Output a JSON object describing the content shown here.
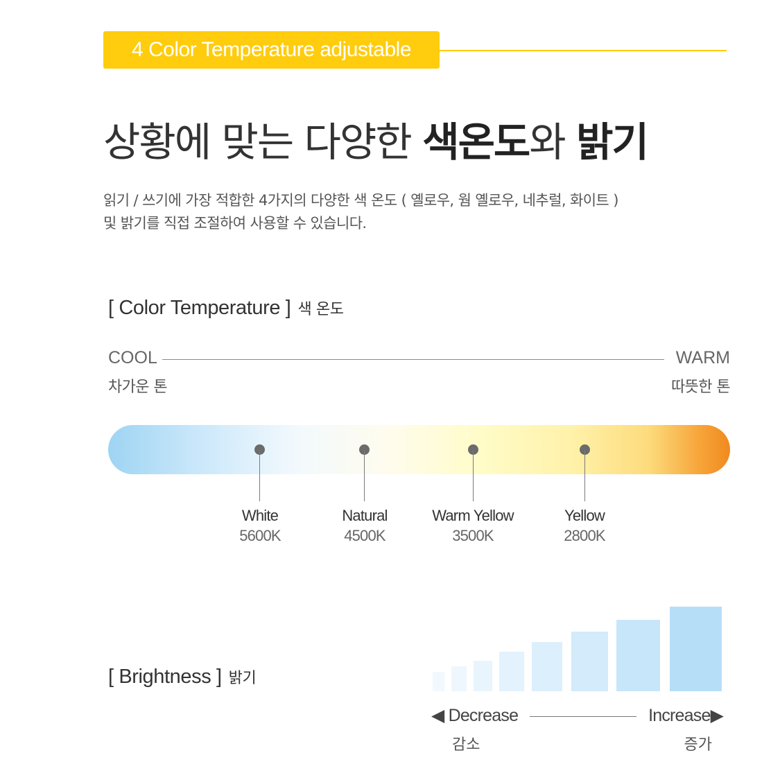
{
  "header": {
    "badge_label": "4 Color Temperature adjustable",
    "headline_1": "상황에 맞는 다양한 ",
    "headline_bold_1": "색온도",
    "headline_2": "와 ",
    "headline_bold_2": "밝기",
    "description_line_1": "읽기 / 쓰기에 가장 적합한 4가지의 다양한 색 온도 ( 옐로우, 웜 옐로우, 네추럴, 화이트 )",
    "description_line_2": "및 밝기를 직접 조절하여 사용할 수 있습니다."
  },
  "color_temperature": {
    "title": "[ Color Temperature ]",
    "title_ko": "색 온도",
    "cool_label": "COOL",
    "cool_label_ko": "차가운 톤",
    "warm_label": "WARM",
    "warm_label_ko": "따뜻한 톤",
    "markers": [
      {
        "name": "White",
        "kelvin": "5600K"
      },
      {
        "name": "Natural",
        "kelvin": "4500K"
      },
      {
        "name": "Warm Yellow",
        "kelvin": "3500K"
      },
      {
        "name": "Yellow",
        "kelvin": "2800K"
      }
    ]
  },
  "brightness": {
    "title": "[ Brightness ]",
    "title_ko": "밝기",
    "levels": [
      1,
      2,
      3,
      4,
      5,
      6,
      7,
      8
    ],
    "decrease_label": "◀ Decrease",
    "decrease_label_ko": "감소",
    "increase_label": "Increase▶",
    "increase_label_ko": "증가"
  },
  "colors": {
    "accent": "#FFCC0E",
    "cool": "#9ED4F3",
    "warm": "#F08A1E"
  }
}
